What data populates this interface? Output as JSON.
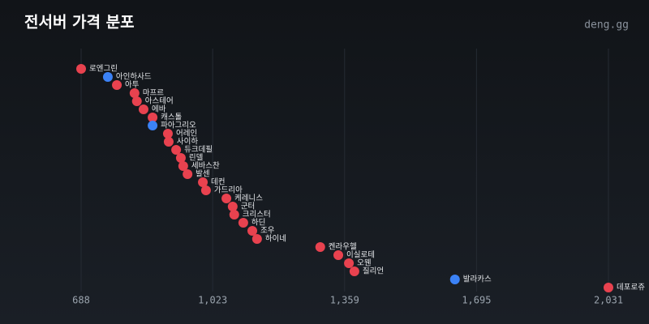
{
  "chart_data": {
    "type": "dot",
    "title": "전서버 가격 분포",
    "brand": "deng.gg",
    "categories": [
      "로엔그린",
      "아인하사드",
      "아투",
      "마프르",
      "아스테어",
      "에바",
      "캐스톨",
      "파아그리오",
      "어레인",
      "사이하",
      "듀크데필",
      "린델",
      "세바스찬",
      "발센",
      "데컨",
      "가드리아",
      "케레니스",
      "군터",
      "크리스터",
      "하딘",
      "조우",
      "하이네",
      "켄라우헬",
      "이실로테",
      "오웬",
      "질리언",
      "발라카스",
      "데포로쥬"
    ],
    "values": [
      688,
      756,
      779,
      824,
      830,
      847,
      870,
      870,
      909,
      911,
      930,
      942,
      948,
      959,
      998,
      1006,
      1058,
      1074,
      1078,
      1101,
      1124,
      1136,
      1297,
      1343,
      1370,
      1384,
      1640,
      2031
    ],
    "colors": [
      "#e8424f",
      "#3b82f6",
      "#e8424f",
      "#e8424f",
      "#e8424f",
      "#e8424f",
      "#e8424f",
      "#3b82f6",
      "#e8424f",
      "#e8424f",
      "#e8424f",
      "#e8424f",
      "#e8424f",
      "#e8424f",
      "#e8424f",
      "#e8424f",
      "#e8424f",
      "#e8424f",
      "#e8424f",
      "#e8424f",
      "#e8424f",
      "#e8424f",
      "#e8424f",
      "#e8424f",
      "#e8424f",
      "#e8424f",
      "#3b82f6",
      "#e8424f"
    ],
    "xlim": [
      688,
      2031
    ],
    "xticks": [
      688,
      {
        "value": 1023,
        "label": "1,023"
      },
      {
        "value": 1359,
        "label": "1,359"
      },
      {
        "value": 1695,
        "label": "1,695"
      },
      {
        "value": 2031,
        "label": "2,031"
      }
    ],
    "grid": true
  }
}
